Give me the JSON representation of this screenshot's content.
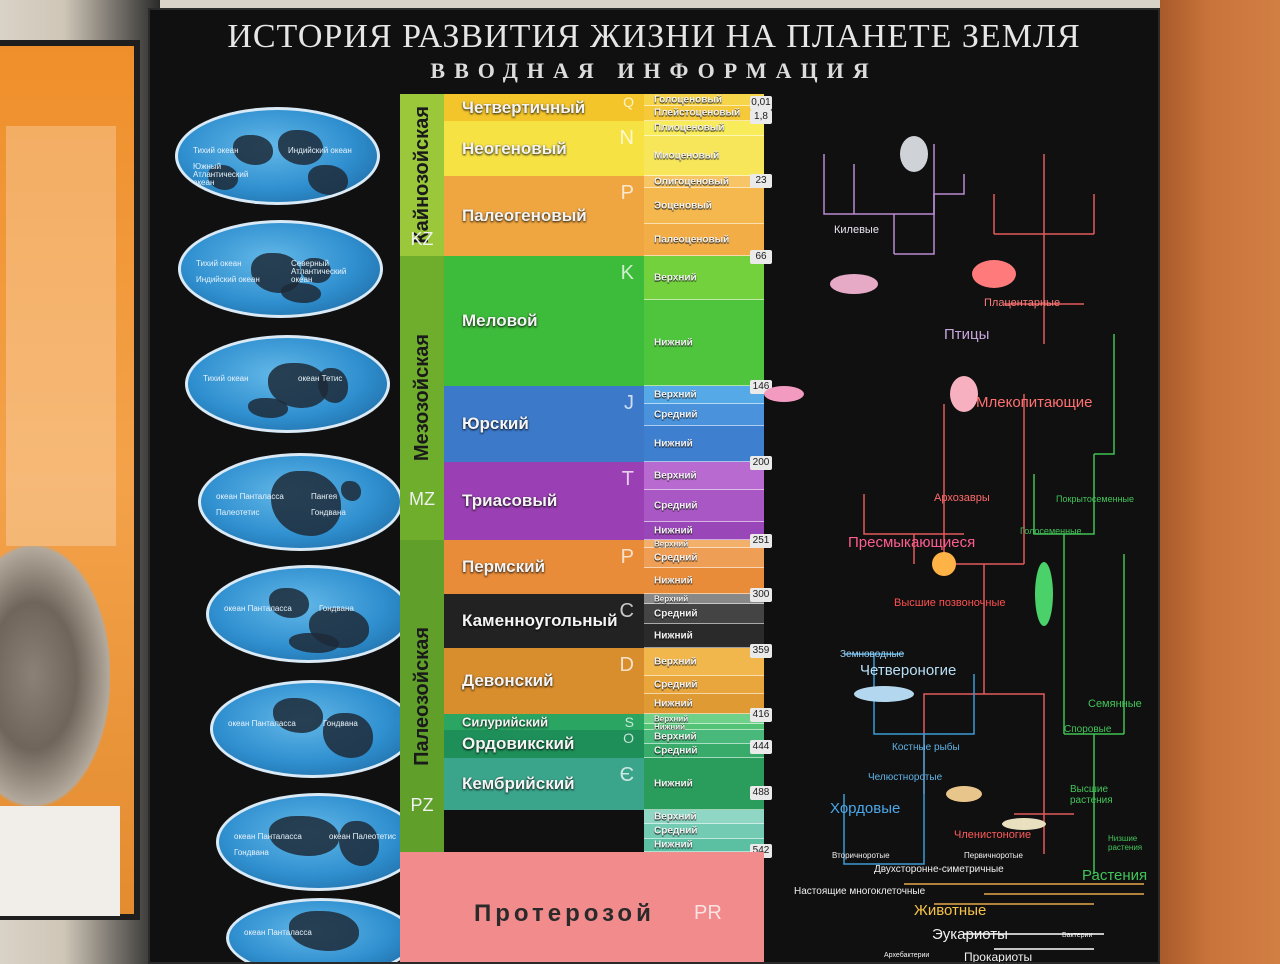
{
  "title": "ИСТОРИЯ РАЗВИТИЯ ЖИЗНИ НА ПЛАНЕТЕ ЗЕМЛЯ",
  "subtitle": "ВВОДНАЯ ИНФОРМАЦИЯ",
  "colors": {
    "board": "#101010",
    "cenozoic_era": "#9ac83a",
    "mesozoic_era": "#6fae2d",
    "paleozoic_era": "#5f9f2a",
    "proterozoic": "#f28c8c"
  },
  "eras": [
    {
      "name": "Кайнозойская",
      "abbr": "KZ"
    },
    {
      "name": "Мезозойская",
      "abbr": "MZ"
    },
    {
      "name": "Палеозойская",
      "abbr": "PZ"
    }
  ],
  "periods": [
    {
      "name": "Четвертичный",
      "code": "Q",
      "color": "#f3c52b"
    },
    {
      "name": "Неогеновый",
      "code": "N",
      "color": "#f7e244"
    },
    {
      "name": "Палеогеновый",
      "code": "P",
      "color": "#f0a640"
    },
    {
      "name": "Меловой",
      "code": "K",
      "color": "#3dbb3a"
    },
    {
      "name": "Юрский",
      "code": "J",
      "color": "#3c79c9"
    },
    {
      "name": "Триасовый",
      "code": "T",
      "color": "#9a3fb4"
    },
    {
      "name": "Пермский",
      "code": "P",
      "color": "#e88c39"
    },
    {
      "name": "Каменноугольный",
      "code": "C",
      "color": "#222222"
    },
    {
      "name": "Девонский",
      "code": "D",
      "color": "#d98e2e"
    },
    {
      "name": "Силурийский",
      "code": "S",
      "color": "#2aa562"
    },
    {
      "name": "Ордовикский",
      "code": "O",
      "color": "#1e8f59"
    },
    {
      "name": "Кембрийский",
      "code": "Є",
      "color": "#3ba58c"
    }
  ],
  "epochs": [
    {
      "name": "Голоценовый",
      "color": "#f7d54a"
    },
    {
      "name": "Плейстоценовый",
      "color": "#f5c93a"
    },
    {
      "name": "Плиоценовый",
      "color": "#f9ec5a"
    },
    {
      "name": "Миоценовый",
      "color": "#f7e65a"
    },
    {
      "name": "Олигоценовый",
      "color": "#f7c565"
    },
    {
      "name": "Эоценовый",
      "color": "#f4b84f"
    },
    {
      "name": "Палеоценовый",
      "color": "#f2ad47"
    },
    {
      "name": "Верхний",
      "color": "#72d13d"
    },
    {
      "name": "Нижний",
      "color": "#4fc43d"
    },
    {
      "name": "Верхний",
      "color": "#55a9e6"
    },
    {
      "name": "Средний",
      "color": "#4a93dc"
    },
    {
      "name": "Нижний",
      "color": "#3f7fd0"
    },
    {
      "name": "Верхний",
      "color": "#b86ad0"
    },
    {
      "name": "Средний",
      "color": "#a957c4"
    },
    {
      "name": "Нижний",
      "color": "#9946b8"
    },
    {
      "name": "Верхний",
      "color": "#f3b06a"
    },
    {
      "name": "Средний",
      "color": "#ee9f55"
    },
    {
      "name": "Нижний",
      "color": "#e88c39"
    },
    {
      "name": "Верхний",
      "color": "#888888"
    },
    {
      "name": "Средний",
      "color": "#444444"
    },
    {
      "name": "Нижний",
      "color": "#2a2a2a"
    },
    {
      "name": "Верхний",
      "color": "#f1b64c"
    },
    {
      "name": "Средний",
      "color": "#e9a63d"
    },
    {
      "name": "Нижний",
      "color": "#df9a33"
    },
    {
      "name": "Верхний",
      "color": "#6fd089"
    },
    {
      "name": "Нижний",
      "color": "#52c274"
    },
    {
      "name": "Верхний",
      "color": "#48b97a"
    },
    {
      "name": "Средний",
      "color": "#38ab6a"
    },
    {
      "name": "Нижний",
      "color": "#2a9c5c"
    },
    {
      "name": "Верхний",
      "color": "#8fd7c4"
    },
    {
      "name": "Средний",
      "color": "#74cbb3"
    },
    {
      "name": "Нижний",
      "color": "#5bbfa2"
    }
  ],
  "boundaries_mya": [
    "0,01",
    "1,8",
    "23",
    "66",
    "146",
    "200",
    "251",
    "300",
    "359",
    "416",
    "444",
    "488",
    "542"
  ],
  "proterozoic": {
    "name": "Протерозой",
    "code": "PR"
  },
  "globes": [
    {
      "labels": [
        "Тихий океан",
        "Индийский океан",
        "Южный Атлантический океан"
      ]
    },
    {
      "labels": [
        "Тихий океан",
        "Северный Атлантический океан",
        "Индийский океан"
      ]
    },
    {
      "labels": [
        "Тихий океан",
        "океан Тетис"
      ]
    },
    {
      "labels": [
        "океан Панталасса",
        "Пангея",
        "Палеотетис",
        "Гондвана"
      ]
    },
    {
      "labels": [
        "океан Панталасса",
        "Гондвана"
      ]
    },
    {
      "labels": [
        "океан Панталасса",
        "Гондвана"
      ]
    },
    {
      "labels": [
        "океан Панталасса",
        "океан Палеотетис",
        "Гондвана"
      ]
    },
    {
      "labels": [
        "океан Панталасса"
      ]
    }
  ],
  "tree_labels": {
    "kilevye": "Килевые",
    "placentarnye": "Плацентарные",
    "ptitsy": "Птицы",
    "mlekopitayushchie": "Млекопитающие",
    "arkhozavry": "Архозавры",
    "presmykayushchiesya": "Пресмыкающиеся",
    "pokrytosemennye": "Покрытосеменные",
    "golosemennye": "Голосеменные",
    "vysshie_pozvonochnye": "Высшие позвоночные",
    "zemnovodnye": "Земноводные",
    "chetveronogie": "Четвероногие",
    "kostnye_ryby": "Костные рыбы",
    "chelyustnorotye": "Челюстноротые",
    "khordovye": "Хордовые",
    "semennye": "Семянные",
    "sporovye": "Споровые",
    "vysshie_rasteniya": "Высшие растения",
    "nizshie_rasteniya": "Низшие растения",
    "chlenistonogie": "Членистоногие",
    "vtorichnorotye": "Вторичноротые",
    "pervichnorotye": "Первичноротые",
    "dvustoronne": "Двухсторонне-симетричные",
    "nastoyashchie": "Настоящие многоклеточные",
    "zhivotnye": "Животные",
    "rasteniya": "Растения",
    "eukarioty": "Эукариоты",
    "bakterii": "Бактерии",
    "arkhebakterii": "Архебактерии",
    "prokarioty": "Прокариоты"
  }
}
